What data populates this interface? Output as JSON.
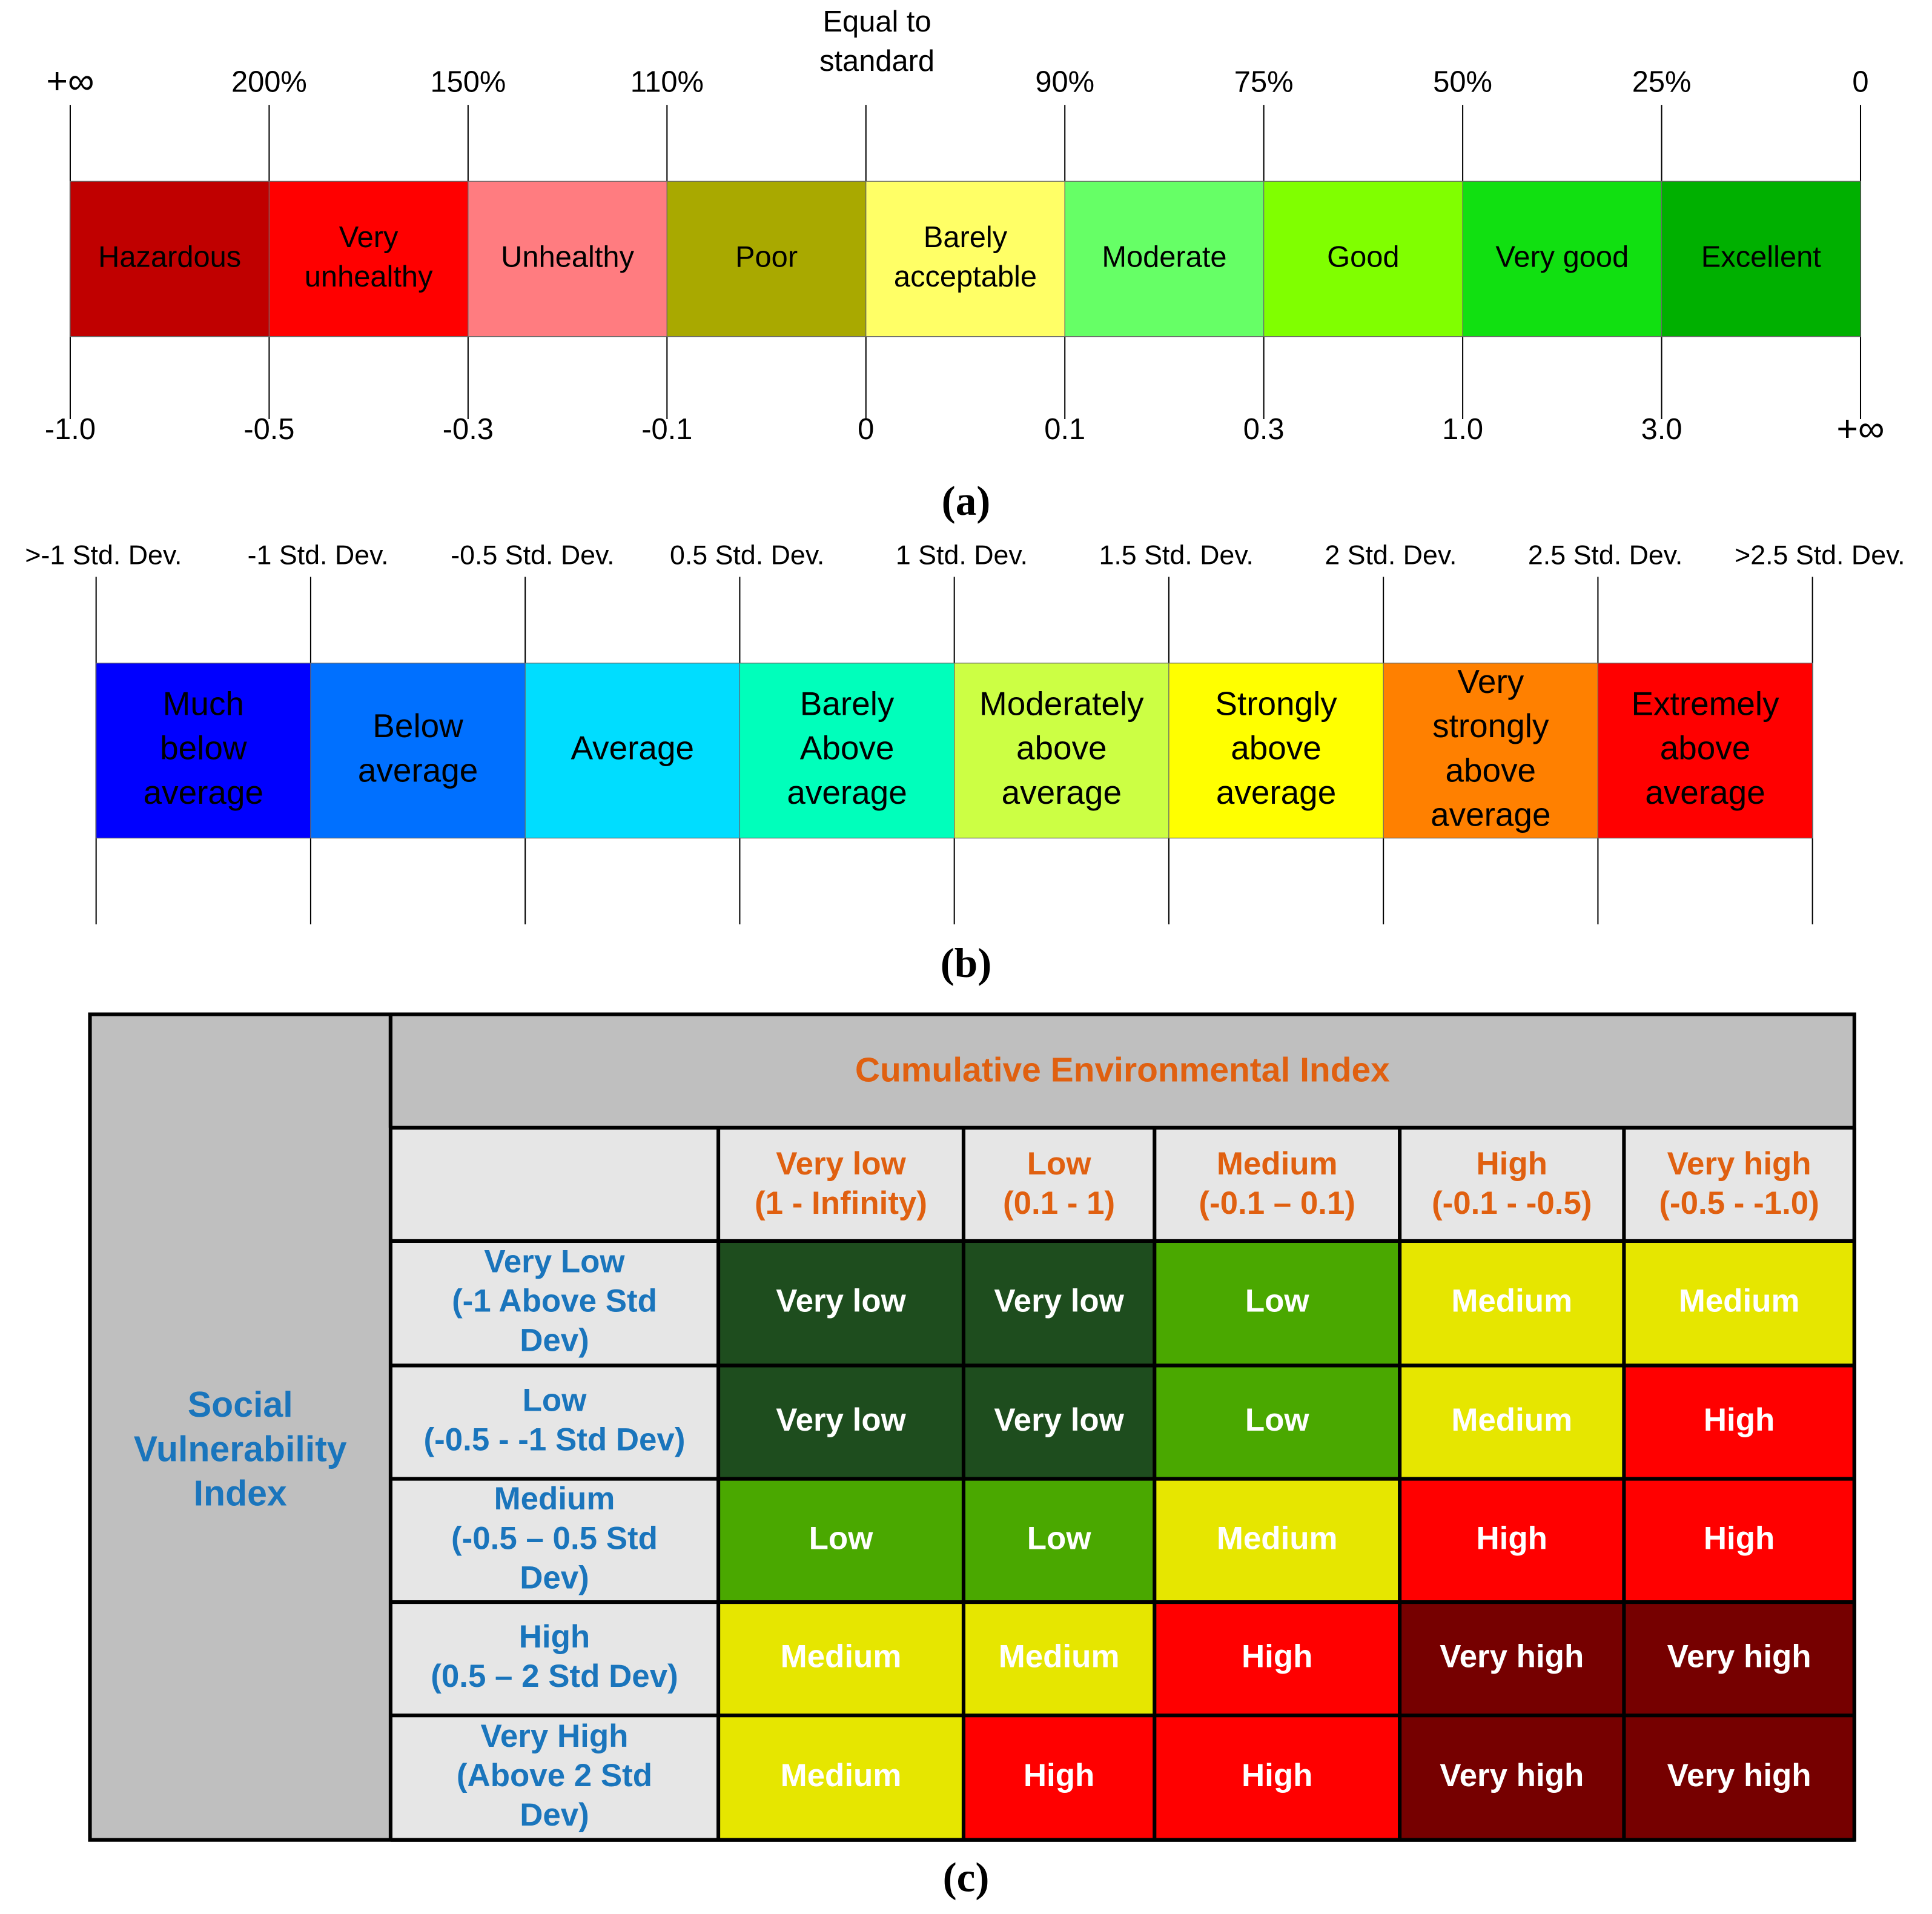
{
  "panel_a": {
    "caption": "(a)",
    "top_labels": [
      [
        "+∞"
      ],
      [
        "200%"
      ],
      [
        "150%"
      ],
      [
        "110%"
      ],
      [
        "Equal to",
        "standard"
      ],
      [
        "90%"
      ],
      [
        "75%"
      ],
      [
        "50%"
      ],
      [
        "25%"
      ],
      [
        "0"
      ]
    ],
    "bottom_labels": [
      "-1.0",
      "-0.5",
      "-0.3",
      "-0.1",
      "0",
      "0.1",
      "0.3",
      "1.0",
      "3.0",
      "+∞"
    ],
    "segments": [
      {
        "label": [
          "Hazardous"
        ],
        "color": "#c00000"
      },
      {
        "label": [
          "Very",
          "unhealthy"
        ],
        "color": "#ff0000"
      },
      {
        "label": [
          "Unhealthy"
        ],
        "color": "#ff7c80"
      },
      {
        "label": [
          "Poor"
        ],
        "color": "#a9a900"
      },
      {
        "label": [
          "Barely",
          "acceptable"
        ],
        "color": "#ffff66"
      },
      {
        "label": [
          "Moderate"
        ],
        "color": "#66ff66"
      },
      {
        "label": [
          "Good"
        ],
        "color": "#80ff00"
      },
      {
        "label": [
          "Very good"
        ],
        "color": "#11e011"
      },
      {
        "label": [
          "Excellent"
        ],
        "color": "#00b000"
      }
    ]
  },
  "panel_b": {
    "caption": "(b)",
    "top_labels": [
      ">-1 Std. Dev.",
      "-1 Std. Dev.",
      "-0.5 Std. Dev.",
      "0.5 Std. Dev.",
      "1 Std. Dev.",
      "1.5 Std. Dev.",
      "2 Std. Dev.",
      "2.5 Std. Dev.",
      ">2.5 Std. Dev."
    ],
    "segments": [
      {
        "label": [
          "Much",
          "below",
          "average"
        ],
        "color": "#0000ff"
      },
      {
        "label": [
          "Below",
          "average"
        ],
        "color": "#0070ff"
      },
      {
        "label": [
          "Average"
        ],
        "color": "#00ddff"
      },
      {
        "label": [
          "Barely",
          "Above",
          "average"
        ],
        "color": "#00ffbb"
      },
      {
        "label": [
          "Moderately",
          "above",
          "average"
        ],
        "color": "#ccff44"
      },
      {
        "label": [
          "Strongly",
          "above",
          "average"
        ],
        "color": "#ffff00"
      },
      {
        "label": [
          "Very",
          "strongly",
          "above",
          "average"
        ],
        "color": "#ff8000"
      },
      {
        "label": [
          "Extremely",
          "above",
          "average"
        ],
        "color": "#ff0000"
      }
    ]
  },
  "panel_c": {
    "caption": "(c)",
    "corner_label": [
      "Social",
      "Vulnerability",
      "Index"
    ],
    "header": "Cumulative Environmental Index",
    "columns": [
      [
        "Very low",
        "(1 - Infinity)"
      ],
      [
        "Low",
        "(0.1 - 1)"
      ],
      [
        "Medium",
        "(-0.1 – 0.1)"
      ],
      [
        "High",
        "(-0.1 - -0.5)"
      ],
      [
        "Very high",
        "(-0.5 - -1.0)"
      ]
    ],
    "rows": [
      {
        "label": [
          "Very Low",
          "(-1 Above Std",
          "Dev)"
        ],
        "cells": [
          "Very low",
          "Very low",
          "Low",
          "Medium",
          "Medium"
        ]
      },
      {
        "label": [
          "Low",
          "(-0.5 - -1 Std Dev)"
        ],
        "cells": [
          "Very low",
          "Very low",
          "Low",
          "Medium",
          "High"
        ]
      },
      {
        "label": [
          "Medium",
          "(-0.5 – 0.5 Std",
          "Dev)"
        ],
        "cells": [
          "Low",
          "Low",
          "Medium",
          "High",
          "High"
        ]
      },
      {
        "label": [
          "High",
          "(0.5 – 2 Std Dev)"
        ],
        "cells": [
          "Medium",
          "Medium",
          "High",
          "Very high",
          "Very high"
        ]
      },
      {
        "label": [
          "Very High",
          "(Above 2 Std",
          "Dev)"
        ],
        "cells": [
          "Medium",
          "High",
          "High",
          "Very high",
          "Very high"
        ]
      }
    ],
    "level_colors": {
      "Very low": "#1e4d1e",
      "Low": "#4aa800",
      "Medium": "#e6e600",
      "High": "#ff0000",
      "Very high": "#760000"
    }
  }
}
